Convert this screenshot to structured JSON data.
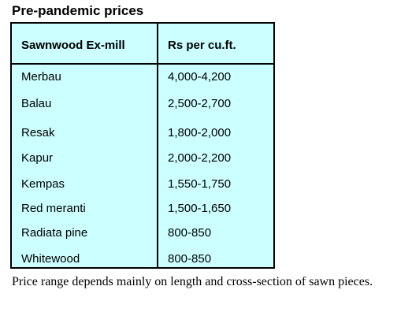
{
  "title": "Pre-pandemic prices",
  "table": {
    "headers": [
      "Sawnwood Ex-mill",
      "Rs per cu.ft."
    ],
    "rows": [
      {
        "species": "Merbau",
        "price": "4,000-4,200"
      },
      {
        "species": "Balau",
        "price": "2,500-2,700"
      },
      {
        "species": "Resak",
        "price": "1,800-2,000"
      },
      {
        "species": "Kapur",
        "price": "2,000-2,200"
      },
      {
        "species": "Kempas",
        "price": "1,550-1,750"
      },
      {
        "species": "Red meranti",
        "price": "1,500-1,650"
      },
      {
        "species": "Radiata pine",
        "price": "800-850"
      },
      {
        "species": "Whitewood",
        "price": "800-850"
      }
    ]
  },
  "note": "Price range depends mainly on length and cross-section of sawn pieces.",
  "colors": {
    "table_background": "#ccffff",
    "border": "#000000"
  }
}
